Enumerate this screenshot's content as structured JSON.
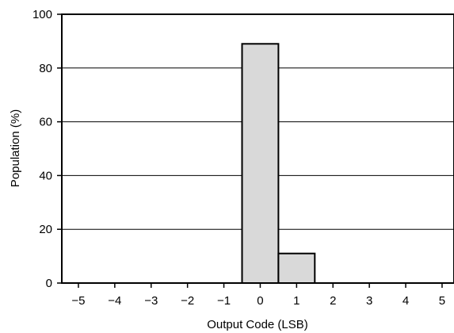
{
  "chart_data": {
    "type": "bar",
    "title": "",
    "xlabel": "Output Code (LSB)",
    "ylabel": "Population (%)",
    "categories": [
      "−5",
      "−4",
      "−3",
      "−2",
      "−1",
      "0",
      "1",
      "2",
      "3",
      "4",
      "5"
    ],
    "values": [
      0,
      0,
      0,
      0,
      0,
      89,
      11,
      0,
      0,
      0,
      0
    ],
    "ylim": [
      0,
      100
    ],
    "y_ticks": [
      "0",
      "20",
      "40",
      "60",
      "80",
      "100"
    ],
    "grid": "horizontal",
    "bar_fill": "#d9d9d9",
    "bar_stroke": "#000000"
  }
}
